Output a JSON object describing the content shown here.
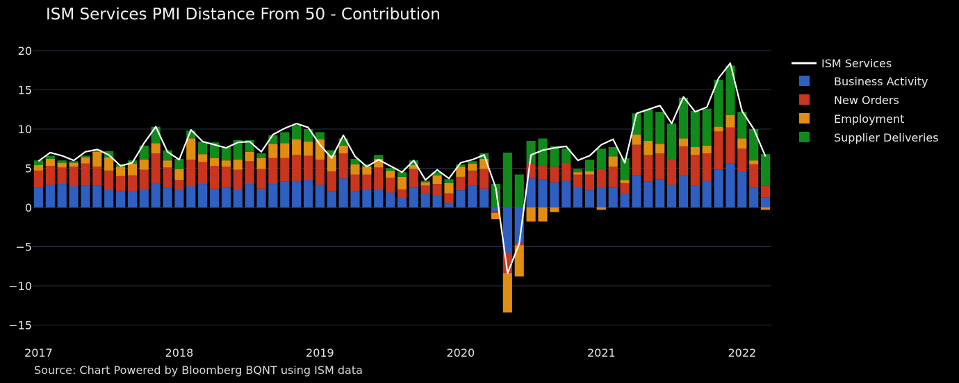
{
  "chart_data": {
    "type": "bar",
    "stacked": true,
    "title": "ISM Services PMI Distance From 50 - Contribution",
    "source": "Source: Chart Powered by Bloomberg BQNT using ISM data",
    "ylim": [
      -16,
      20
    ],
    "yticks": [
      20,
      15,
      10,
      5,
      0,
      -5,
      -10,
      -15
    ],
    "ytick_labels": [
      "20",
      "15",
      "10",
      "5",
      "0",
      "−5",
      "−10",
      "−15"
    ],
    "x_start": "2017-01",
    "xtick_labels": [
      "2017",
      "2018",
      "2019",
      "2020",
      "2021",
      "2022"
    ],
    "series": [
      {
        "name": "Business Activity",
        "color": "#2f5fc0",
        "values": [
          2.5,
          2.9,
          3.0,
          2.7,
          2.8,
          2.8,
          2.3,
          2.1,
          2.0,
          2.3,
          3.1,
          2.5,
          2.3,
          2.7,
          3.0,
          2.4,
          2.5,
          2.3,
          3.0,
          2.4,
          3.0,
          3.3,
          3.4,
          3.5,
          2.9,
          2.1,
          3.7,
          2.1,
          2.3,
          2.3,
          1.9,
          1.2,
          2.5,
          1.7,
          1.5,
          0.6,
          2.2,
          2.8,
          2.4,
          -0.5,
          -5.8,
          -4.5,
          3.7,
          3.6,
          3.2,
          3.4,
          2.6,
          2.2,
          2.6,
          2.5,
          1.7,
          4.1,
          3.3,
          3.6,
          2.9,
          4.0,
          2.8,
          3.4,
          4.8,
          5.6,
          4.6,
          2.5,
          1.3
        ]
      },
      {
        "name": "New Orders",
        "color": "#c9351f",
        "values": [
          2.2,
          2.4,
          2.1,
          2.5,
          2.8,
          2.4,
          2.4,
          1.9,
          2.1,
          2.5,
          3.8,
          2.6,
          1.2,
          3.4,
          2.8,
          2.9,
          2.7,
          2.5,
          2.9,
          2.5,
          3.3,
          3.0,
          3.3,
          3.1,
          3.2,
          2.5,
          3.2,
          2.1,
          1.9,
          2.8,
          1.9,
          1.1,
          2.4,
          1.1,
          1.5,
          1.2,
          1.7,
          1.9,
          2.5,
          -0.2,
          -2.6,
          -0.3,
          1.9,
          1.7,
          2.0,
          2.3,
          1.6,
          2.0,
          2.3,
          2.7,
          1.4,
          3.9,
          3.4,
          3.3,
          3.2,
          3.8,
          3.9,
          3.5,
          4.9,
          4.6,
          2.9,
          3.0,
          1.5
        ]
      },
      {
        "name": "Employment",
        "color": "#e08d12",
        "values": [
          0.7,
          0.9,
          0.6,
          0.5,
          0.8,
          1.9,
          1.7,
          1.2,
          1.5,
          1.3,
          1.3,
          0.9,
          1.4,
          2.7,
          1.0,
          1.0,
          0.8,
          1.3,
          1.2,
          1.4,
          1.8,
          1.9,
          2.0,
          1.8,
          2.6,
          2.1,
          1.0,
          1.3,
          1.0,
          1.1,
          0.9,
          1.6,
          0.5,
          0.4,
          1.1,
          1.3,
          1.3,
          0.9,
          1.3,
          -0.8,
          -5.0,
          -4.0,
          -1.8,
          -1.8,
          -0.6,
          0.0,
          0.3,
          0.4,
          -0.3,
          1.3,
          0.4,
          1.3,
          1.8,
          1.2,
          0.0,
          1.0,
          1.0,
          1.0,
          0.6,
          1.6,
          1.3,
          0.5,
          -0.3
        ]
      },
      {
        "name": "Supplier Deliveries",
        "color": "#118a1c",
        "values": [
          0.6,
          0.4,
          0.3,
          0.2,
          0.2,
          0.3,
          0.8,
          0.3,
          0.4,
          1.8,
          2.1,
          1.3,
          1.3,
          1.0,
          1.6,
          2.0,
          1.7,
          2.5,
          1.5,
          0.6,
          1.1,
          1.4,
          1.8,
          1.6,
          0.9,
          0.6,
          0.9,
          0.7,
          0.3,
          0.5,
          0.3,
          0.6,
          0.6,
          0.2,
          0.4,
          0.5,
          0.3,
          0.3,
          0.7,
          3.0,
          7.0,
          4.2,
          2.9,
          3.5,
          2.6,
          1.8,
          0.4,
          1.5,
          2.6,
          1.2,
          2.8,
          2.7,
          4.0,
          4.1,
          4.6,
          5.2,
          4.6,
          4.7,
          6.0,
          6.3,
          3.4,
          4.0,
          4.0
        ]
      }
    ],
    "line": {
      "name": "ISM Services",
      "color": "#ffffff",
      "values": [
        5.9,
        7.0,
        6.6,
        6.0,
        7.1,
        7.4,
        6.7,
        5.3,
        5.7,
        8.2,
        10.3,
        7.1,
        6.1,
        9.9,
        8.4,
        8.0,
        7.6,
        8.3,
        8.4,
        7.1,
        9.3,
        10.1,
        10.7,
        10.2,
        8.0,
        6.3,
        9.2,
        6.5,
        5.2,
        6.1,
        5.3,
        4.5,
        6.0,
        3.5,
        4.8,
        3.7,
        5.7,
        6.1,
        6.7,
        2.5,
        -8.4,
        -4.6,
        6.7,
        7.3,
        7.6,
        7.8,
        6.0,
        6.6,
        8.0,
        8.7,
        5.7,
        12.0,
        12.5,
        13.0,
        10.7,
        14.1,
        12.2,
        12.8,
        16.5,
        18.4,
        12.3,
        10.0,
        6.5
      ]
    }
  }
}
